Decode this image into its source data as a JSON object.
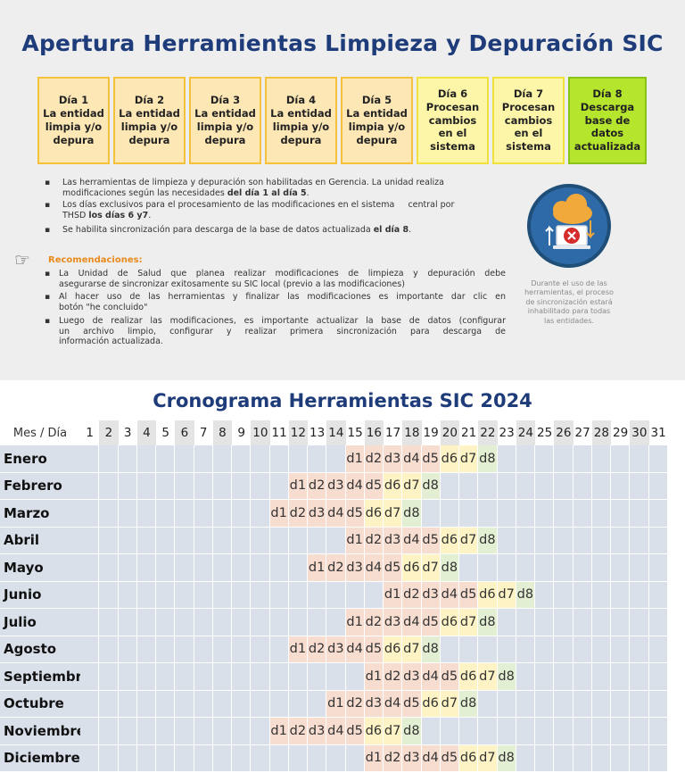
{
  "top": {
    "title": "Apertura Herramientas Limpieza y Depuración SIC",
    "days": [
      {
        "label": "Día 1\nLa entidad\nlimpia y/o\ndepura",
        "type": "t1"
      },
      {
        "label": "Día 2\nLa entidad\nlimpia y/o\ndepura",
        "type": "t1"
      },
      {
        "label": "Día 3\nLa entidad\nlimpia y/o\ndepura",
        "type": "t1"
      },
      {
        "label": "Día 4\nLa entidad\nlimpia y/o\ndepura",
        "type": "t1"
      },
      {
        "label": "Día 5\nLa entidad\nlimpia y/o\ndepura",
        "type": "t1"
      },
      {
        "label": "Día 6\nProcesan\ncambios\nen el\nsistema",
        "type": "t2"
      },
      {
        "label": "Día 7\nProcesan\ncambios\nen el\nsistema",
        "type": "t2"
      },
      {
        "label": "Día 8\nDescarga\nbase de\ndatos\nactualizada",
        "type": "t3"
      }
    ],
    "bullets": {
      "b1_l1": "Las herramientas de limpieza y depuración son habilitadas en Gerencia. La unidad realiza",
      "b1_l2_a": "modificaciones según las necesidades ",
      "b1_l2_b": "del día 1 al día 5",
      "b1_l2_c": ".",
      "b2_l1": "Los días exclusivos para el procesamiento de las modificaciones en el sistema     central por",
      "b2_l2_a": "THSD ",
      "b2_l2_b": "los días 6 y7",
      "b2_l2_c": ".",
      "b3_a": "Se habilita sincronización para descarga de la base de datos actualizada ",
      "b3_b": "el día 8",
      "b3_c": "."
    },
    "recommendations": {
      "title": "Recomendaciones:",
      "r1_l1": "La Unidad de Salud que planea realizar modificaciones de limpieza y depuración debe",
      "r1_l2": "asegurarse de sincronizar exitosamente su SIC local (previo a las modificaciones)",
      "r2_l1": "Al hacer uso de las herramientas y finalizar las modificaciones es importante dar clic en",
      "r2_l2": "botón \"he concluido\"",
      "r3_l1": "Luego de realizar las modificaciones, es importante actualizar la base de datos (configurar",
      "r3_l2": "un archivo limpio, configurar y realizar primera sincronización para descarga de",
      "r3_l3": "información actualizada."
    },
    "side_note": "Durante el uso de las herramientas, el proceso de sincronización estará inhabilitado para todas las entidades.",
    "icon": "cloud-sync-error-icon"
  },
  "cronograma": {
    "title": "Cronograma Herramientas SIC 2024",
    "header_label": "Mes / Día",
    "days": [
      "1",
      "2",
      "3",
      "4",
      "5",
      "6",
      "7",
      "8",
      "9",
      "10",
      "11",
      "12",
      "13",
      "14",
      "15",
      "16",
      "17",
      "18",
      "19",
      "20",
      "21",
      "22",
      "23",
      "24",
      "25",
      "26",
      "27",
      "28",
      "29",
      "30",
      "31"
    ],
    "highlighted_days": [
      2,
      4,
      6,
      8,
      10,
      12,
      14,
      16,
      18,
      20,
      22,
      24,
      26,
      28,
      30
    ],
    "phase_labels": [
      "d1",
      "d2",
      "d3",
      "d4",
      "d5",
      "d6",
      "d7",
      "d8"
    ],
    "months": [
      {
        "name": "Enero",
        "start": 15
      },
      {
        "name": "Febrero",
        "start": 12
      },
      {
        "name": "Marzo",
        "start": 11
      },
      {
        "name": "Abril",
        "start": 15
      },
      {
        "name": "Mayo",
        "start": 13
      },
      {
        "name": "Junio",
        "start": 17
      },
      {
        "name": "Julio",
        "start": 15
      },
      {
        "name": "Agosto",
        "start": 12
      },
      {
        "name": "Septiembre",
        "start": 16
      },
      {
        "name": "Octubre",
        "start": 14
      },
      {
        "name": "Noviembre",
        "start": 11
      },
      {
        "name": "Diciembre",
        "start": 16
      }
    ],
    "colors": {
      "month_bg": "#d9e0ea",
      "empty_bg": "#d9e0ea",
      "prep_bg": "#f7dcd0",
      "process_bg": "#fdf3c4",
      "download_bg": "#e3efd2"
    }
  }
}
